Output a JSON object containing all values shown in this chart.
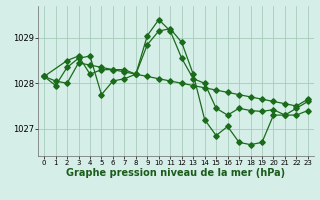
{
  "background_color": "#d6eee8",
  "grid_color": "#a8ccbb",
  "line_color": "#1a6b1a",
  "marker_color": "#1a6b1a",
  "xlabel": "Graphe pression niveau de la mer (hPa)",
  "xlabel_fontsize": 7.0,
  "ylabel_labels": [
    1027,
    1028,
    1029
  ],
  "ylim": [
    1026.4,
    1029.7
  ],
  "xlim": [
    -0.5,
    23.5
  ],
  "xticks": [
    0,
    1,
    2,
    3,
    4,
    5,
    6,
    7,
    8,
    9,
    10,
    11,
    12,
    13,
    14,
    15,
    16,
    17,
    18,
    19,
    20,
    21,
    22,
    23
  ],
  "series1_x": [
    0,
    1,
    2,
    3,
    4,
    5,
    6,
    7,
    8,
    9,
    10,
    11,
    12,
    13,
    14,
    15,
    16,
    17,
    18,
    19,
    20,
    21,
    22,
    23
  ],
  "series1_y": [
    1028.15,
    1027.95,
    1028.35,
    1028.55,
    1028.6,
    1027.75,
    1028.05,
    1028.1,
    1028.2,
    1028.85,
    1029.15,
    1029.2,
    1028.9,
    1028.2,
    1027.2,
    1026.85,
    1027.05,
    1026.7,
    1026.65,
    1026.7,
    1027.3,
    1027.3,
    1027.3,
    1027.4
  ],
  "series2_x": [
    0,
    1,
    2,
    3,
    4,
    5,
    6,
    7,
    8,
    9,
    10,
    11,
    12,
    13,
    14,
    15,
    16,
    17,
    18,
    19,
    20,
    21,
    22,
    23
  ],
  "series2_y": [
    1028.15,
    1028.05,
    1028.0,
    1028.45,
    1028.4,
    1028.35,
    1028.3,
    1028.25,
    1028.2,
    1028.15,
    1028.1,
    1028.05,
    1028.0,
    1027.95,
    1027.9,
    1027.85,
    1027.8,
    1027.75,
    1027.7,
    1027.65,
    1027.6,
    1027.55,
    1027.5,
    1027.65
  ],
  "series3_x": [
    0,
    2,
    3,
    4,
    5,
    6,
    7,
    8,
    9,
    10,
    11,
    12,
    13,
    14,
    15,
    16,
    17,
    18,
    19,
    20,
    21,
    22,
    23
  ],
  "series3_y": [
    1028.15,
    1028.5,
    1028.6,
    1028.2,
    1028.3,
    1028.3,
    1028.3,
    1028.2,
    1029.05,
    1029.4,
    1029.15,
    1028.55,
    1028.1,
    1028.0,
    1027.45,
    1027.3,
    1027.45,
    1027.4,
    1027.38,
    1027.42,
    1027.3,
    1027.45,
    1027.6
  ]
}
